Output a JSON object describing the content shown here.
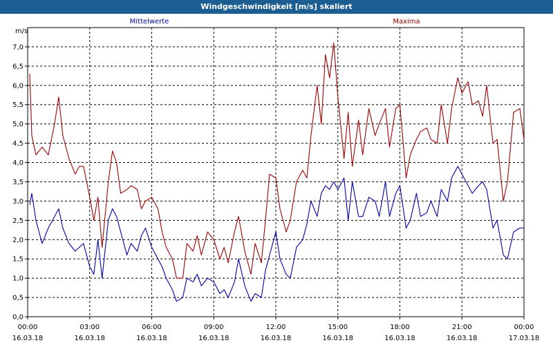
{
  "window": {
    "title": "Windgeschwindigkeit [m/s] skaliert"
  },
  "chart_data": {
    "type": "line",
    "ylabel": "m/s",
    "ylim": [
      0,
      7.5
    ],
    "yticks": [
      "0,0",
      "0,5",
      "1,0",
      "1,5",
      "2,0",
      "2,5",
      "3,0",
      "3,5",
      "4,0",
      "4,5",
      "5,0",
      "5,5",
      "6,0",
      "6,5",
      "7,0"
    ],
    "xlim": [
      "16.03.18 00:00",
      "17.03.18 00:00"
    ],
    "xticks": [
      {
        "time": "00:00",
        "date": "16.03.18"
      },
      {
        "time": "03:00",
        "date": "16.03.18"
      },
      {
        "time": "06:00",
        "date": "16.03.18"
      },
      {
        "time": "09:00",
        "date": "16.03.18"
      },
      {
        "time": "12:00",
        "date": "16.03.18"
      },
      {
        "time": "15:00",
        "date": "16.03.18"
      },
      {
        "time": "18:00",
        "date": "16.03.18"
      },
      {
        "time": "21:00",
        "date": "16.03.18"
      },
      {
        "time": "00:00",
        "date": "17.03.18"
      }
    ],
    "grid": true,
    "x_hours": [
      0.1,
      0.2,
      0.4,
      0.7,
      1.0,
      1.3,
      1.5,
      1.7,
      2.0,
      2.3,
      2.5,
      2.7,
      3.0,
      3.2,
      3.4,
      3.6,
      3.9,
      4.1,
      4.3,
      4.5,
      4.8,
      5.0,
      5.3,
      5.5,
      5.7,
      6.0,
      6.3,
      6.5,
      6.7,
      7.0,
      7.2,
      7.5,
      7.7,
      8.0,
      8.2,
      8.4,
      8.7,
      9.0,
      9.3,
      9.5,
      9.7,
      10.0,
      10.2,
      10.5,
      10.8,
      11.0,
      11.3,
      11.5,
      11.7,
      12.0,
      12.2,
      12.5,
      12.7,
      13.0,
      13.3,
      13.5,
      13.7,
      14.0,
      14.2,
      14.4,
      14.6,
      14.8,
      15.0,
      15.3,
      15.5,
      15.7,
      16.0,
      16.2,
      16.5,
      16.8,
      17.0,
      17.3,
      17.5,
      17.8,
      18.0,
      18.3,
      18.5,
      18.8,
      19.0,
      19.3,
      19.5,
      19.8,
      20.0,
      20.3,
      20.5,
      20.8,
      21.0,
      21.3,
      21.5,
      21.8,
      22.0,
      22.2,
      22.5,
      22.7,
      23.0,
      23.2,
      23.5,
      23.8,
      24.0
    ],
    "series": [
      {
        "name": "Mittelwerte",
        "color": "#0000aa",
        "values": [
          2.9,
          3.2,
          2.5,
          1.9,
          2.3,
          2.6,
          2.8,
          2.3,
          1.9,
          1.7,
          1.8,
          1.9,
          1.3,
          1.1,
          2.0,
          1.0,
          2.5,
          2.8,
          2.6,
          2.2,
          1.6,
          1.9,
          1.7,
          2.1,
          2.3,
          1.8,
          1.5,
          1.3,
          1.0,
          0.7,
          0.4,
          0.5,
          1.0,
          0.9,
          1.1,
          0.8,
          1.0,
          0.9,
          0.6,
          0.7,
          0.5,
          0.9,
          1.5,
          0.8,
          0.4,
          0.6,
          0.5,
          1.2,
          1.6,
          2.2,
          1.5,
          1.1,
          1.0,
          1.8,
          2.0,
          2.4,
          3.0,
          2.6,
          3.2,
          3.4,
          3.3,
          3.5,
          3.3,
          3.6,
          2.5,
          3.5,
          2.6,
          2.6,
          3.1,
          3.0,
          2.6,
          3.5,
          2.6,
          3.2,
          3.4,
          2.3,
          2.5,
          3.2,
          2.6,
          2.7,
          3.0,
          2.6,
          3.3,
          3.0,
          3.6,
          3.9,
          3.7,
          3.4,
          3.2,
          3.4,
          3.5,
          3.3,
          2.3,
          2.5,
          1.6,
          1.5,
          2.2,
          2.3,
          2.3
        ]
      },
      {
        "name": "Maxima",
        "color": "#a00000",
        "values": [
          6.3,
          4.7,
          4.2,
          4.4,
          4.2,
          5.0,
          5.7,
          4.7,
          4.1,
          3.7,
          3.9,
          3.9,
          3.1,
          2.5,
          3.1,
          1.8,
          3.5,
          4.3,
          4.0,
          3.2,
          3.3,
          3.4,
          3.3,
          2.8,
          3.0,
          3.1,
          2.8,
          2.2,
          1.8,
          1.5,
          1.0,
          1.0,
          1.9,
          1.7,
          2.1,
          1.6,
          2.2,
          2.0,
          1.5,
          1.8,
          1.4,
          2.2,
          2.6,
          1.7,
          1.1,
          1.9,
          1.4,
          2.5,
          3.7,
          3.6,
          2.8,
          2.2,
          2.5,
          3.5,
          3.8,
          3.6,
          4.7,
          6.0,
          5.0,
          6.8,
          6.2,
          7.1,
          5.7,
          4.1,
          5.3,
          3.9,
          5.1,
          4.2,
          5.4,
          4.7,
          5.0,
          5.4,
          4.4,
          5.4,
          5.5,
          3.6,
          4.2,
          4.6,
          4.8,
          4.9,
          4.6,
          4.5,
          5.5,
          4.5,
          5.4,
          6.2,
          5.8,
          6.1,
          5.5,
          5.6,
          5.2,
          6.0,
          4.5,
          4.6,
          3.0,
          3.5,
          5.3,
          5.4,
          4.6
        ]
      }
    ]
  }
}
